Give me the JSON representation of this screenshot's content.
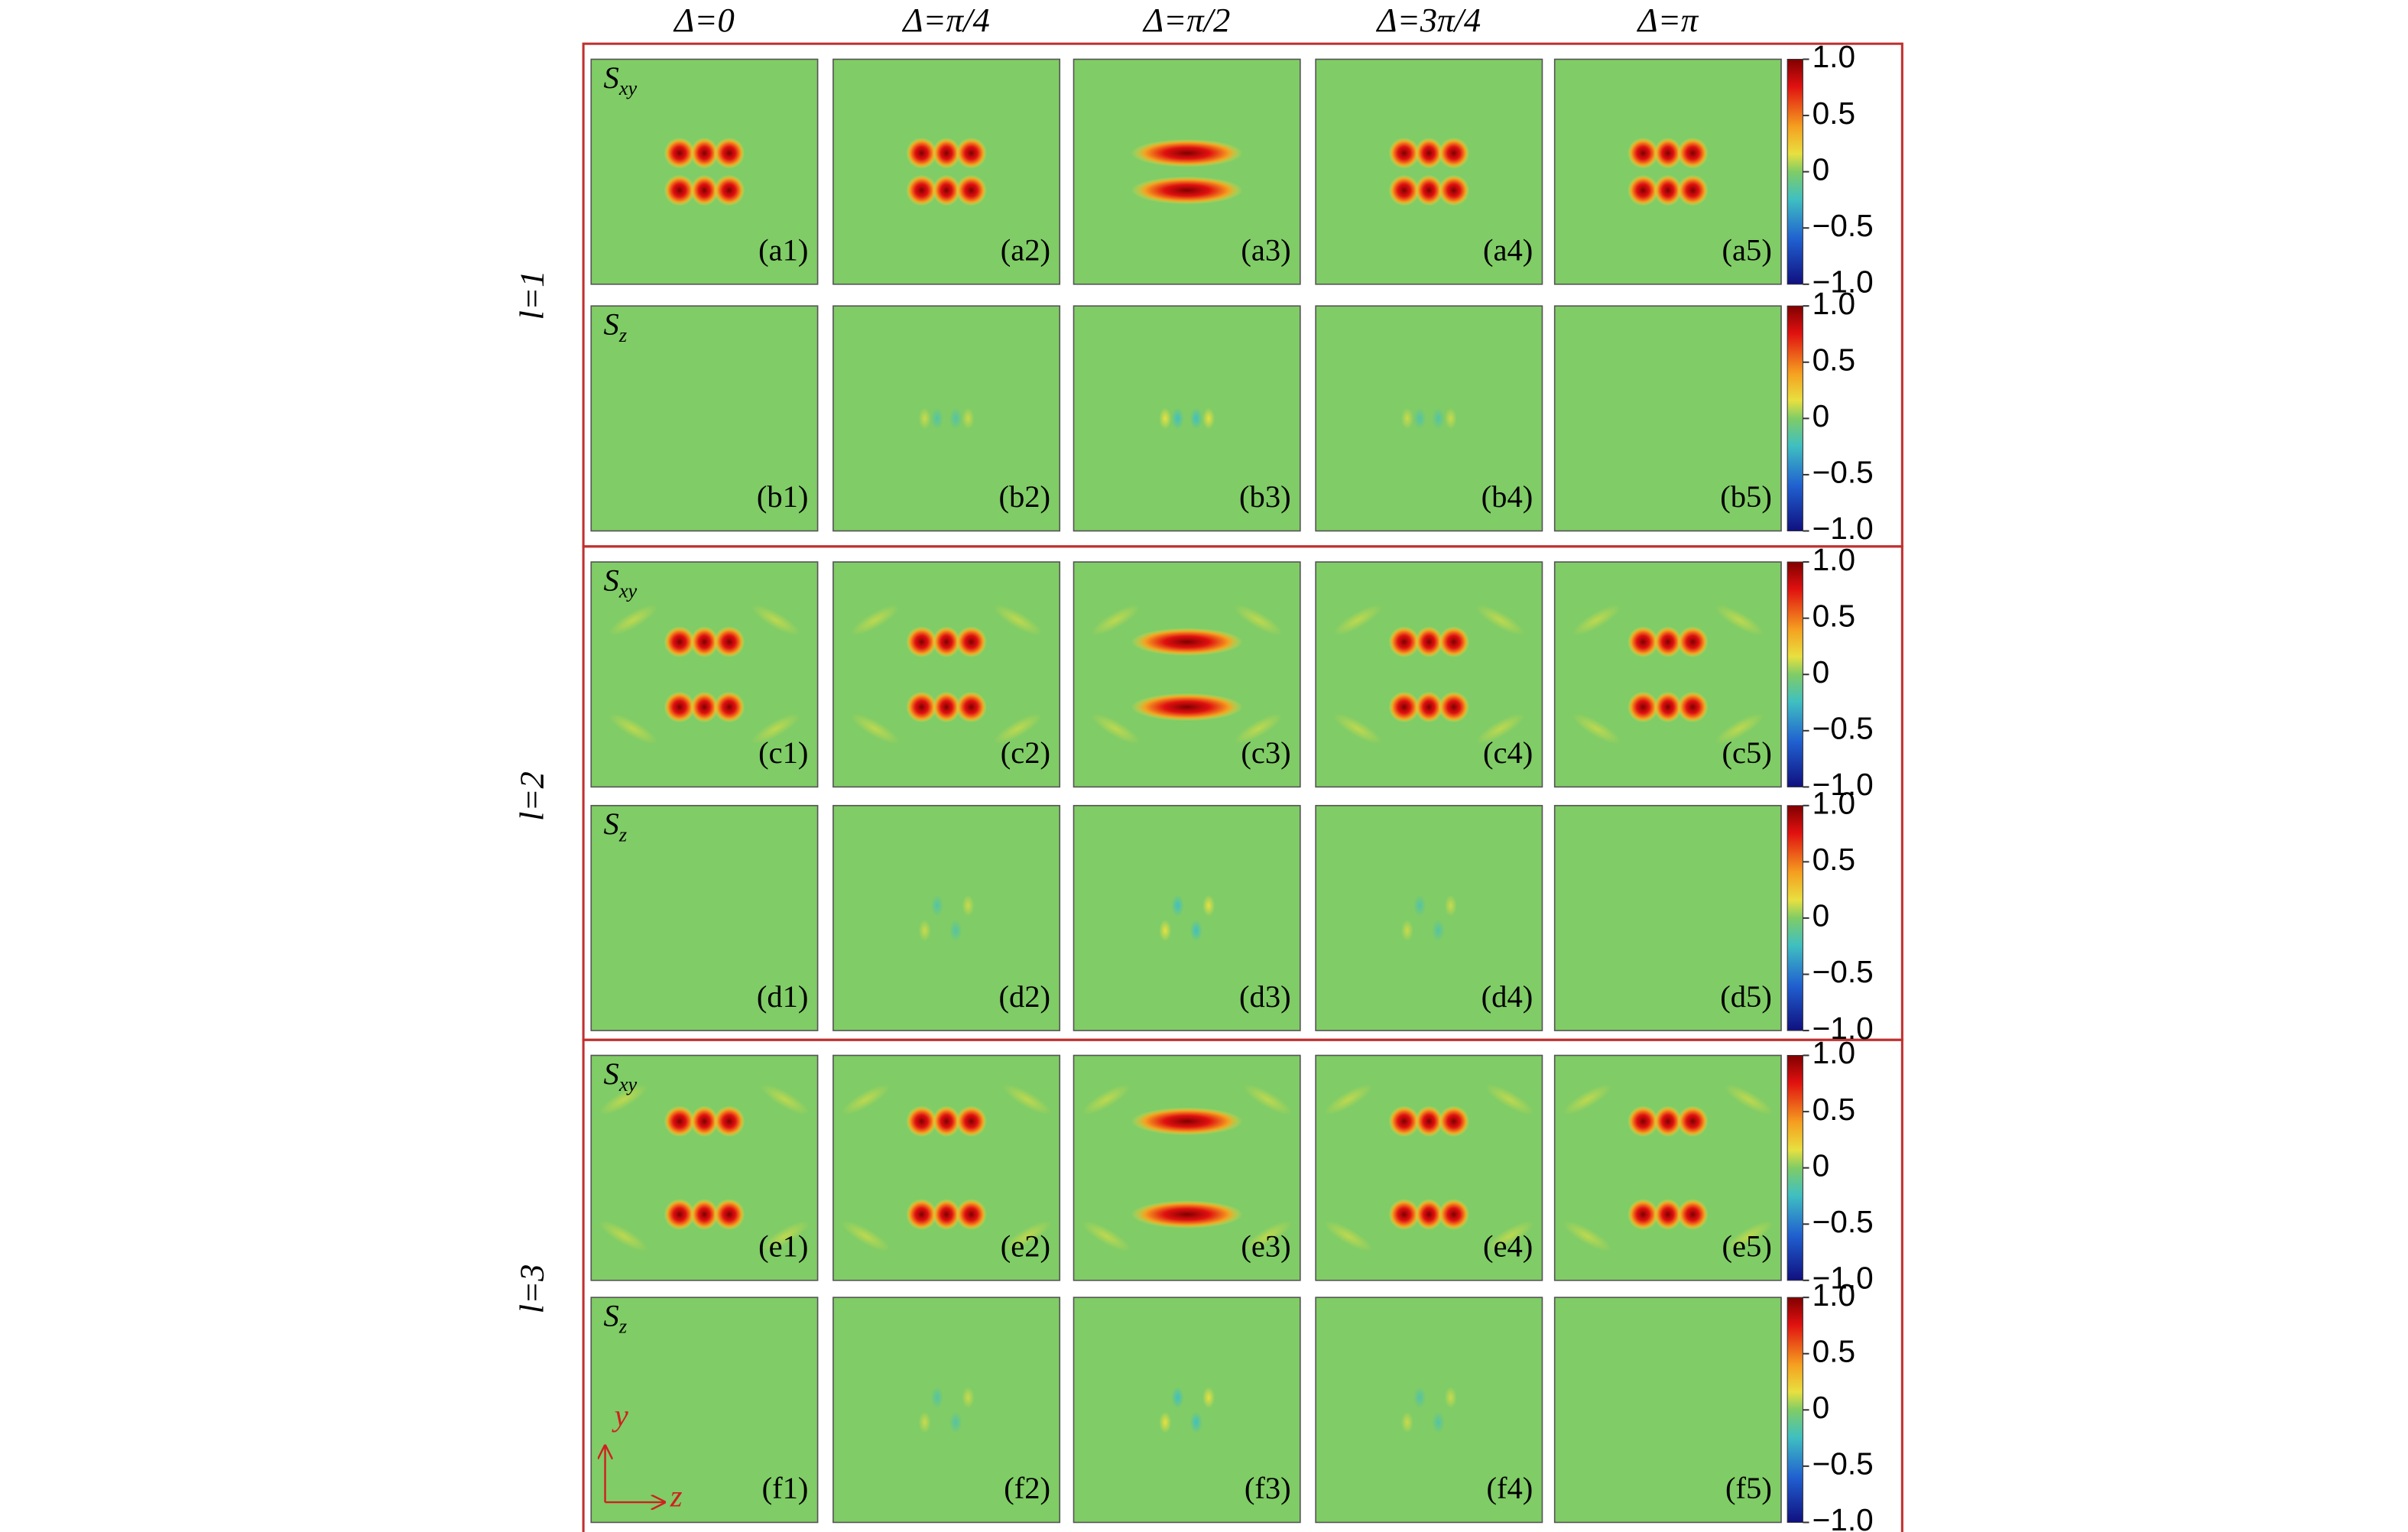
{
  "columns": [
    "Δ=0",
    "Δ=π/4",
    "Δ=π/2",
    "Δ=3π/4",
    "Δ=π"
  ],
  "row_groups": [
    "l=1",
    "l=2",
    "l=3"
  ],
  "field_labels": [
    {
      "symbol": "S",
      "subscript": "xy"
    },
    {
      "symbol": "S",
      "subscript": "z"
    }
  ],
  "panels": [
    [
      "(a1)",
      "(a2)",
      "(a3)",
      "(a4)",
      "(a5)"
    ],
    [
      "(b1)",
      "(b2)",
      "(b3)",
      "(b4)",
      "(b5)"
    ],
    [
      "(c1)",
      "(c2)",
      "(c3)",
      "(c4)",
      "(c5)"
    ],
    [
      "(d1)",
      "(d2)",
      "(d3)",
      "(d4)",
      "(d5)"
    ],
    [
      "(e1)",
      "(e2)",
      "(e3)",
      "(e4)",
      "(e5)"
    ],
    [
      "(f1)",
      "(f2)",
      "(f3)",
      "(f4)",
      "(f5)"
    ]
  ],
  "colorbar": {
    "lim": [
      -1,
      1
    ],
    "ticks": [
      {
        "value": 1,
        "label": "1.0"
      },
      {
        "value": 0.5,
        "label": "0.5"
      },
      0,
      {
        "value": -0.5,
        "label": "−0.5"
      },
      {
        "value": -1,
        "label": "−1.0"
      }
    ]
  },
  "axes": {
    "vertical": "y",
    "horizontal": "z"
  }
}
